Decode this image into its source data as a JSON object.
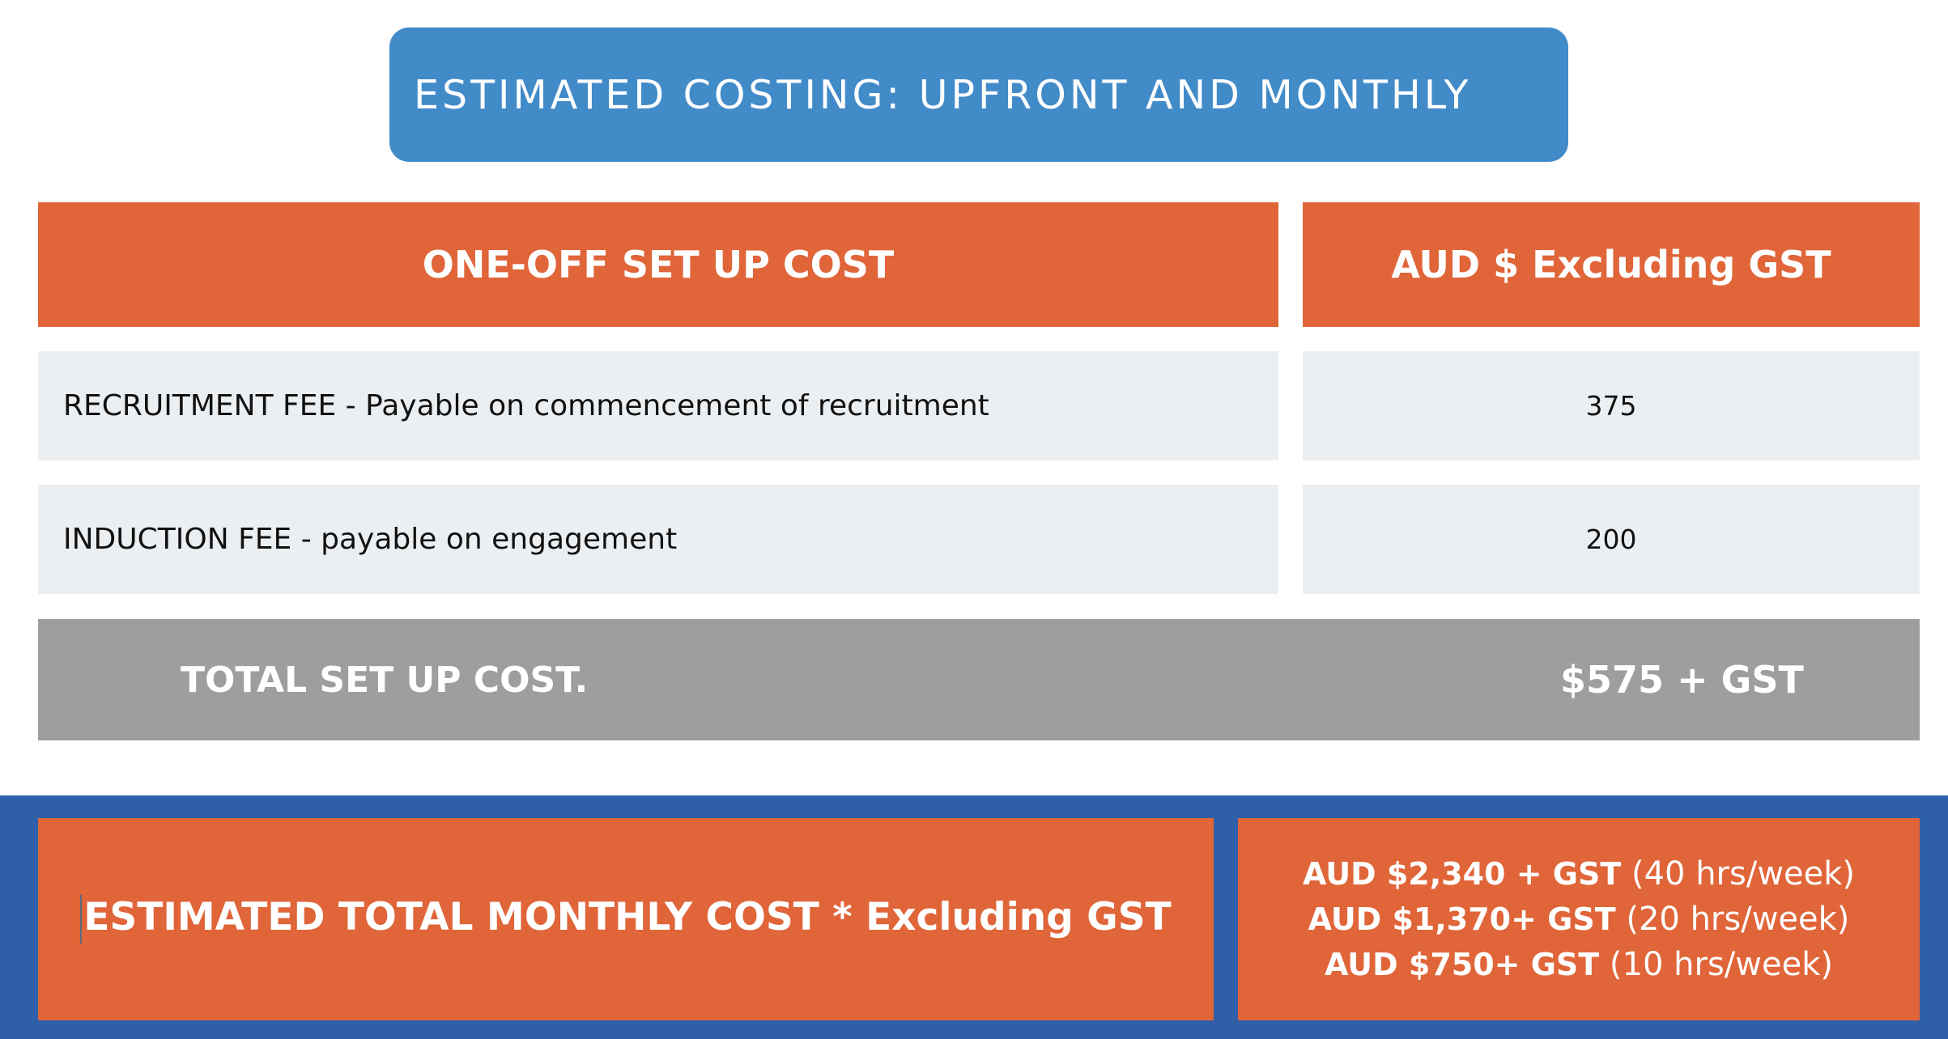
{
  "title": "ESTIMATED COSTING: UPFRONT AND MONTHLY",
  "table": {
    "header": {
      "col1": "ONE-OFF SET UP COST",
      "col2": "AUD  $ Excluding GST"
    },
    "rows": [
      {
        "label": "RECRUITMENT FEE - Payable on commencement of recruitment",
        "value": "375"
      },
      {
        "label": "INDUCTION FEE - payable on engagement",
        "value": "200"
      }
    ],
    "total": {
      "label": "TOTAL SET UP COST.",
      "value": "$575 + GST"
    }
  },
  "monthly": {
    "label": "ESTIMATED TOTAL MONTHLY COST * Excluding GST",
    "prices": [
      {
        "amount": "AUD  $2,340 + GST",
        "hours": "(40 hrs/week)"
      },
      {
        "amount": "AUD  $1,370+ GST",
        "hours": "(20 hrs/week)"
      },
      {
        "amount": "AUD $750+ GST",
        "hours": "(10 hrs/week)"
      }
    ]
  },
  "colors": {
    "title_banner": "#428bc9",
    "orange": "#e06539",
    "light_row": "#eceff2",
    "total_bar": "#9e9e9e",
    "blue_band": "#2f5fa8"
  }
}
